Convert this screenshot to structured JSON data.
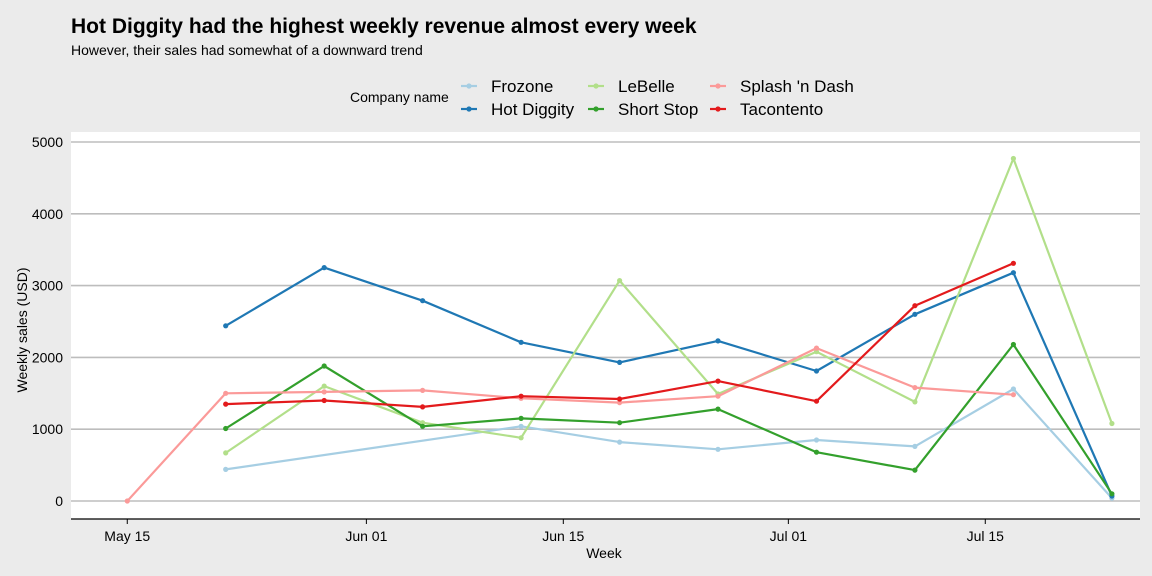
{
  "chart_data": {
    "type": "line",
    "title": "Hot Diggity had the highest weekly revenue almost every week",
    "subtitle": "However, their sales had somewhat of a downward trend",
    "xlabel": "Week",
    "ylabel": "Weekly sales (USD)",
    "legend_title": "Company name",
    "legend_position": "top",
    "grid": "horizontal",
    "ylim": [
      0,
      5000
    ],
    "y_ticks": [
      0,
      1000,
      2000,
      3000,
      4000,
      5000
    ],
    "xlim": [
      "2021-05-11",
      "2021-07-26"
    ],
    "x_ticks": [
      {
        "date": "2021-05-15",
        "label": "May 15"
      },
      {
        "date": "2021-06-01",
        "label": "Jun 01"
      },
      {
        "date": "2021-06-15",
        "label": "Jun 15"
      },
      {
        "date": "2021-07-01",
        "label": "Jul 01"
      },
      {
        "date": "2021-07-15",
        "label": "Jul 15"
      }
    ],
    "series": [
      {
        "name": "Frozone",
        "color": "#a6cee3",
        "points": [
          {
            "x": "2021-05-22",
            "y": 440
          },
          {
            "x": "2021-06-12",
            "y": 1040
          },
          {
            "x": "2021-06-19",
            "y": 820
          },
          {
            "x": "2021-06-26",
            "y": 720
          },
          {
            "x": "2021-07-03",
            "y": 850
          },
          {
            "x": "2021-07-10",
            "y": 760
          },
          {
            "x": "2021-07-17",
            "y": 1560
          },
          {
            "x": "2021-07-24",
            "y": 40
          }
        ]
      },
      {
        "name": "Hot Diggity",
        "color": "#1f78b4",
        "points": [
          {
            "x": "2021-05-22",
            "y": 2440
          },
          {
            "x": "2021-05-29",
            "y": 3250
          },
          {
            "x": "2021-06-05",
            "y": 2790
          },
          {
            "x": "2021-06-12",
            "y": 2210
          },
          {
            "x": "2021-06-19",
            "y": 1930
          },
          {
            "x": "2021-06-26",
            "y": 2230
          },
          {
            "x": "2021-07-03",
            "y": 1810
          },
          {
            "x": "2021-07-10",
            "y": 2600
          },
          {
            "x": "2021-07-17",
            "y": 3180
          },
          {
            "x": "2021-07-24",
            "y": 70
          }
        ]
      },
      {
        "name": "LeBelle",
        "color": "#b2df8a",
        "points": [
          {
            "x": "2021-05-22",
            "y": 670
          },
          {
            "x": "2021-05-29",
            "y": 1600
          },
          {
            "x": "2021-06-05",
            "y": 1090
          },
          {
            "x": "2021-06-12",
            "y": 880
          },
          {
            "x": "2021-06-19",
            "y": 3070
          },
          {
            "x": "2021-06-26",
            "y": 1490
          },
          {
            "x": "2021-07-03",
            "y": 2080
          },
          {
            "x": "2021-07-10",
            "y": 1380
          },
          {
            "x": "2021-07-17",
            "y": 4770
          },
          {
            "x": "2021-07-24",
            "y": 1080
          }
        ]
      },
      {
        "name": "Short Stop",
        "color": "#33a02c",
        "points": [
          {
            "x": "2021-05-22",
            "y": 1010
          },
          {
            "x": "2021-05-29",
            "y": 1880
          },
          {
            "x": "2021-06-05",
            "y": 1040
          },
          {
            "x": "2021-06-12",
            "y": 1150
          },
          {
            "x": "2021-06-19",
            "y": 1090
          },
          {
            "x": "2021-06-26",
            "y": 1280
          },
          {
            "x": "2021-07-03",
            "y": 680
          },
          {
            "x": "2021-07-10",
            "y": 430
          },
          {
            "x": "2021-07-17",
            "y": 2180
          },
          {
            "x": "2021-07-24",
            "y": 100
          }
        ]
      },
      {
        "name": "Splash 'n Dash",
        "color": "#fb9a99",
        "points": [
          {
            "x": "2021-05-15",
            "y": 0
          },
          {
            "x": "2021-05-22",
            "y": 1500
          },
          {
            "x": "2021-05-29",
            "y": 1520
          },
          {
            "x": "2021-06-05",
            "y": 1540
          },
          {
            "x": "2021-06-12",
            "y": 1430
          },
          {
            "x": "2021-06-19",
            "y": 1370
          },
          {
            "x": "2021-06-26",
            "y": 1460
          },
          {
            "x": "2021-07-03",
            "y": 2130
          },
          {
            "x": "2021-07-10",
            "y": 1580
          },
          {
            "x": "2021-07-17",
            "y": 1480
          }
        ]
      },
      {
        "name": "Tacontento",
        "color": "#e31a1c",
        "points": [
          {
            "x": "2021-05-22",
            "y": 1350
          },
          {
            "x": "2021-05-29",
            "y": 1400
          },
          {
            "x": "2021-06-05",
            "y": 1310
          },
          {
            "x": "2021-06-12",
            "y": 1460
          },
          {
            "x": "2021-06-19",
            "y": 1420
          },
          {
            "x": "2021-06-26",
            "y": 1670
          },
          {
            "x": "2021-07-03",
            "y": 1390
          },
          {
            "x": "2021-07-10",
            "y": 2720
          },
          {
            "x": "2021-07-17",
            "y": 3310
          }
        ]
      }
    ]
  }
}
